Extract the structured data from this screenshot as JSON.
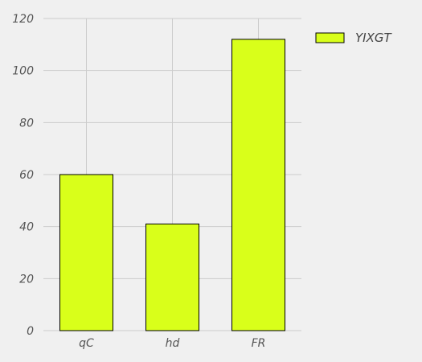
{
  "chart_data": {
    "type": "bar",
    "categories": [
      "qC",
      "hd",
      "FR"
    ],
    "series": [
      {
        "name": "YIXGT",
        "values": [
          60,
          41,
          112
        ]
      }
    ],
    "title": "",
    "xlabel": "",
    "ylabel": "",
    "ylim": [
      0,
      120
    ],
    "yticks": [
      "0",
      "20",
      "40",
      "60",
      "80",
      "100",
      "120"
    ],
    "grid": true,
    "legend_position": "top-right",
    "colors": {
      "bar_fill": "#d9ff1a",
      "bar_edge": "#000000",
      "grid": "#cccccc",
      "background": "#f0f0f0"
    }
  }
}
